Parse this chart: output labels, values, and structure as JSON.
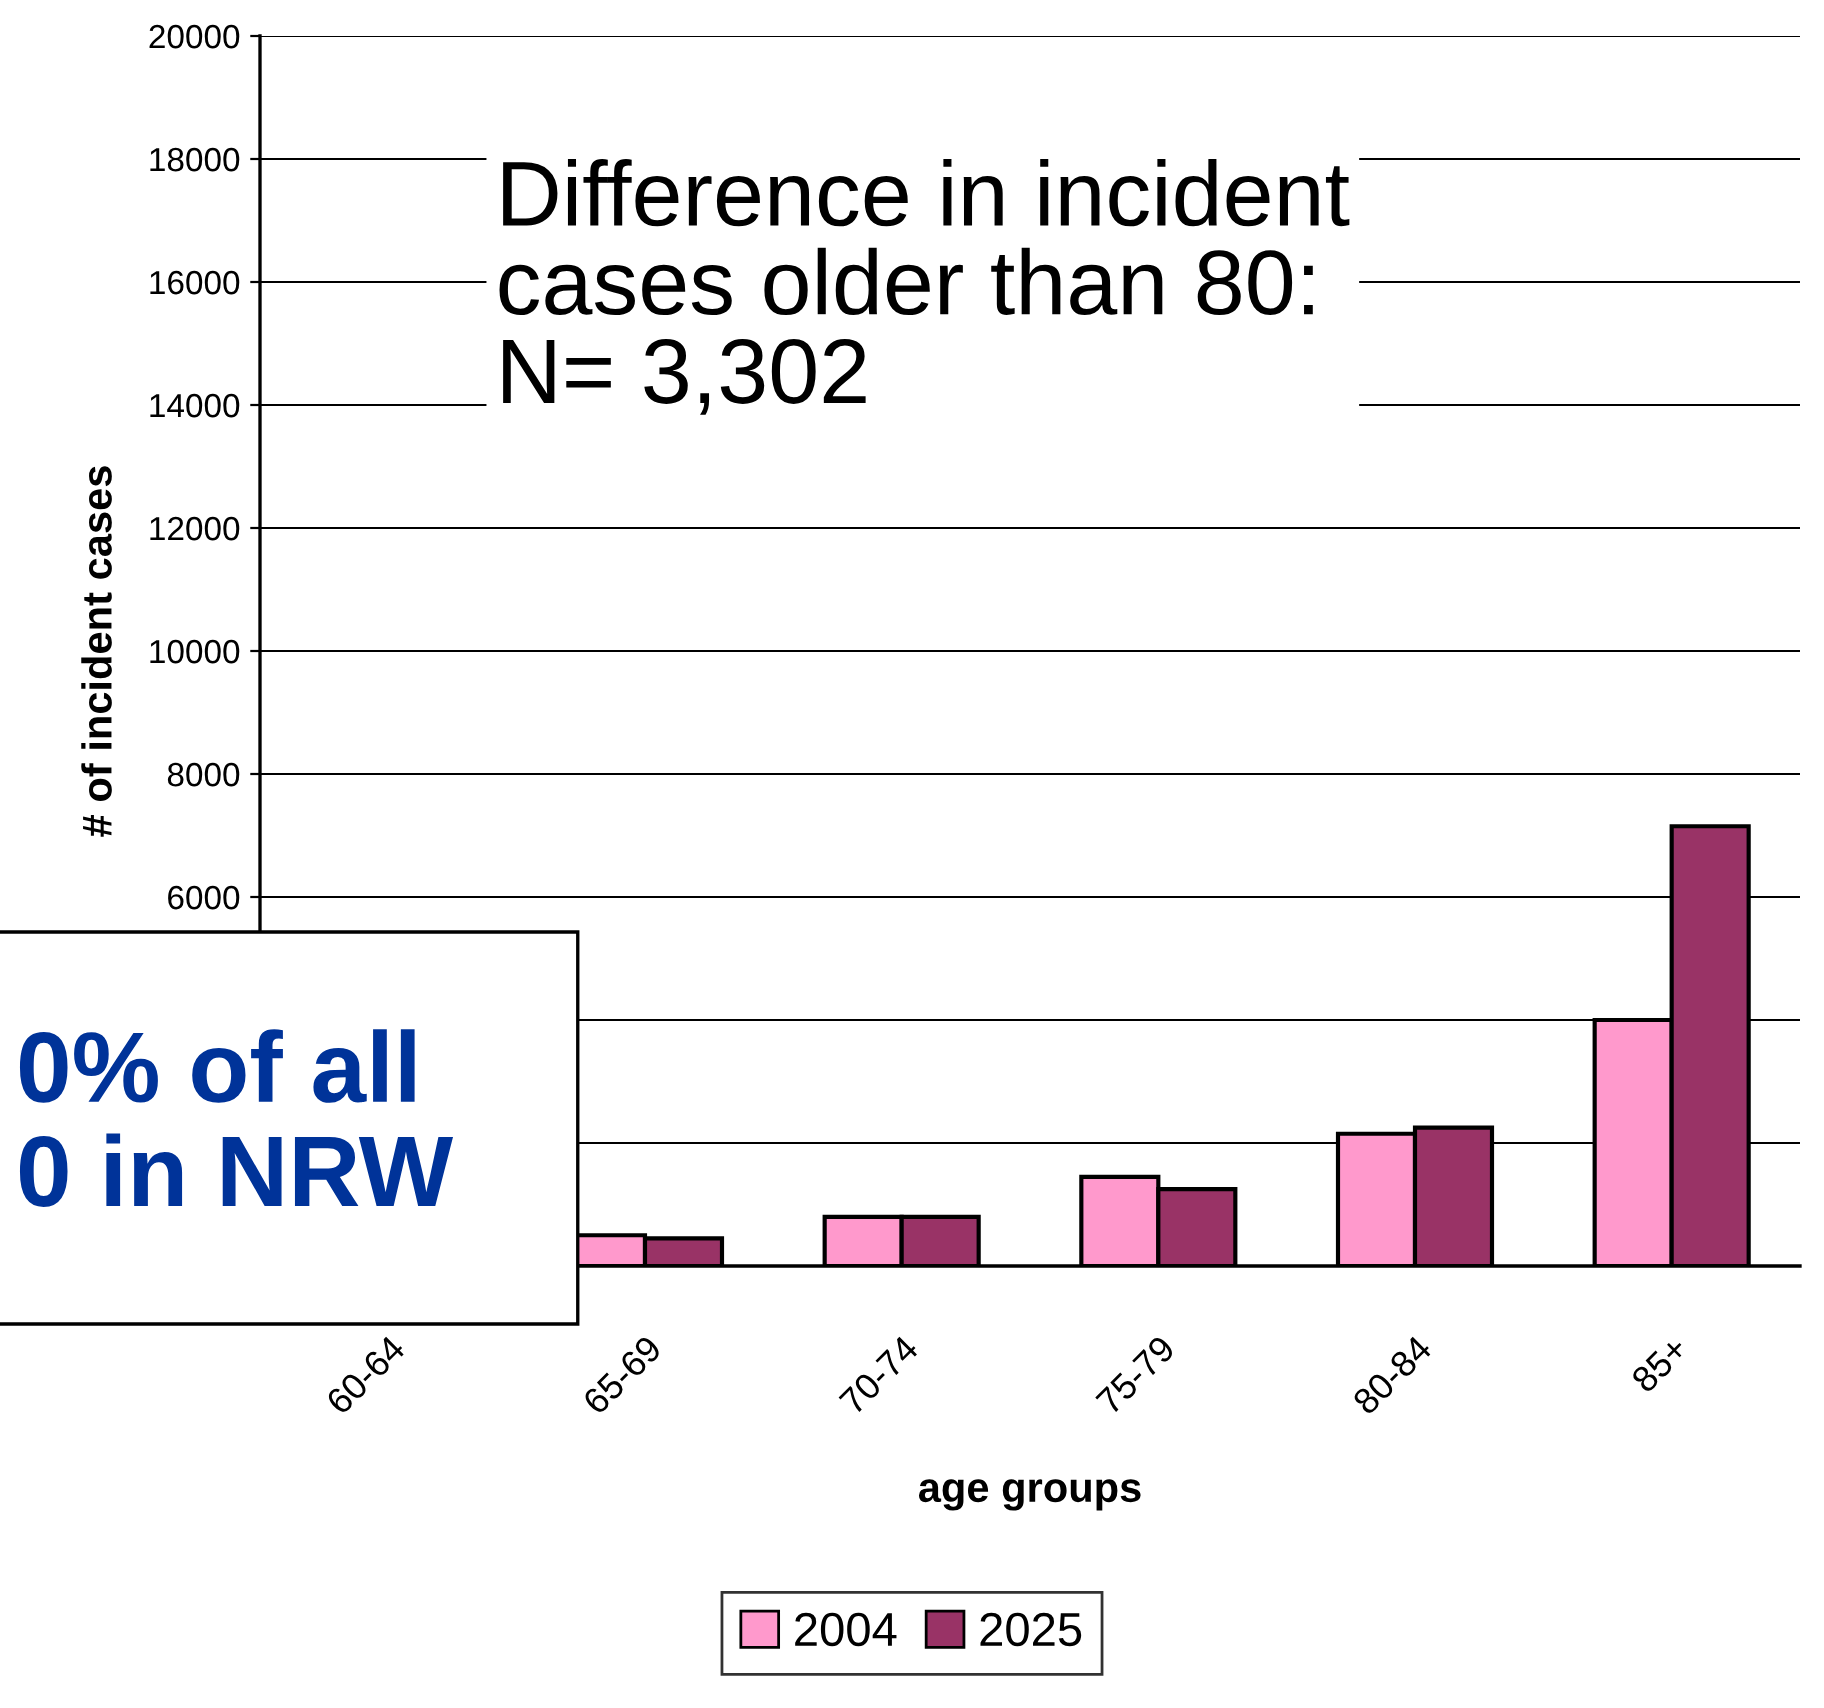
{
  "chart_data": {
    "type": "bar",
    "xlabel": "age groups",
    "ylabel": "# of incident cases",
    "categories": [
      "60-64",
      "65-69",
      "70-74",
      "75-79",
      "80-84",
      "85+"
    ],
    "series": [
      {
        "name": "2004",
        "color": "#ff99cc",
        "values": [
          null,
          500,
          800,
          1450,
          2150,
          4000
        ]
      },
      {
        "name": "2025",
        "color": "#993366",
        "values": [
          null,
          450,
          800,
          1250,
          2250,
          7150
        ]
      }
    ],
    "ylim": [
      0,
      20000
    ],
    "yticks": [
      {
        "value": 0,
        "label": null
      },
      {
        "value": 2000,
        "label": null
      },
      {
        "value": 4000,
        "label": null
      },
      6000,
      8000,
      10000,
      12000,
      14000,
      16000,
      18000,
      20000
    ],
    "grid": "y",
    "legend": "bottom",
    "annotations": [
      "Difference in incident\ncases older than 80:\nN= 3,302",
      "0% of all\n0 in NRW"
    ]
  }
}
